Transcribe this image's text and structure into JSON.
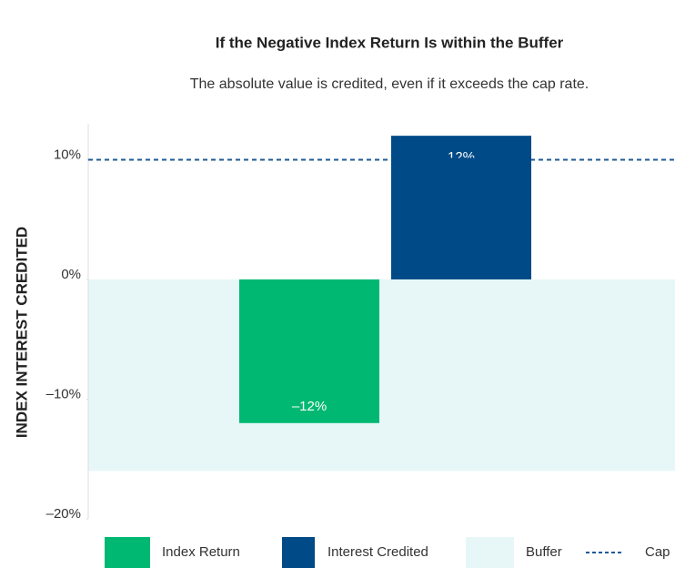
{
  "chart_data": {
    "type": "bar",
    "title": "If the Negative Index Return Is within the Buffer",
    "subtitle": "The absolute value is credited, even if it exceeds the cap rate.",
    "y_label": "INDEX INTEREST CREDITED",
    "categories": [
      null
    ],
    "series": [
      {
        "name": "Index Return",
        "color": "#00b872",
        "values": [
          -12
        ],
        "value_labels": [
          "–12%"
        ]
      },
      {
        "name": "Interest Credited",
        "color": "#004a87",
        "values": [
          12
        ],
        "value_labels": [
          "12%"
        ]
      }
    ],
    "buffer": {
      "name": "Buffer",
      "color": "#e7f7f7",
      "values": [
        0,
        -16
      ]
    },
    "cap": {
      "name": "Cap",
      "color": "#1d5a96",
      "value": 10
    },
    "ylim": [
      -20,
      13
    ],
    "yticks": [
      {
        "value": 10,
        "label": "10%"
      },
      {
        "value": 0,
        "label": "0%"
      },
      {
        "value": -10,
        "label": "–10%"
      },
      {
        "value": -20,
        "label": "–20%"
      }
    ]
  }
}
